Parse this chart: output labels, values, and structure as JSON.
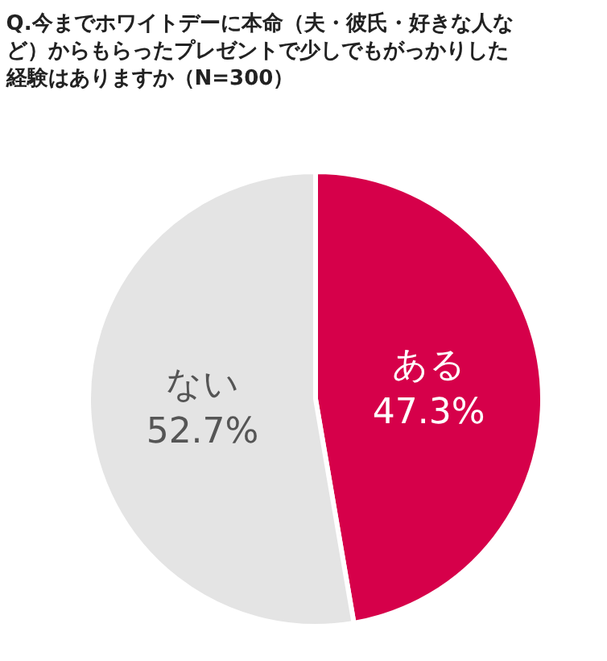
{
  "chart_data": {
    "type": "pie",
    "title": "Q.今までホワイトデーに本命（夫・彼氏・好きな人など）からもらったプレゼントで少しでもがっかりした経験はありますか（N=300）",
    "categories": [
      "ある",
      "ない"
    ],
    "values": [
      47.3,
      52.7
    ],
    "value_labels": [
      "47.3%",
      "52.7%"
    ],
    "colors": [
      "#d6004a",
      "#e4e4e4"
    ]
  }
}
